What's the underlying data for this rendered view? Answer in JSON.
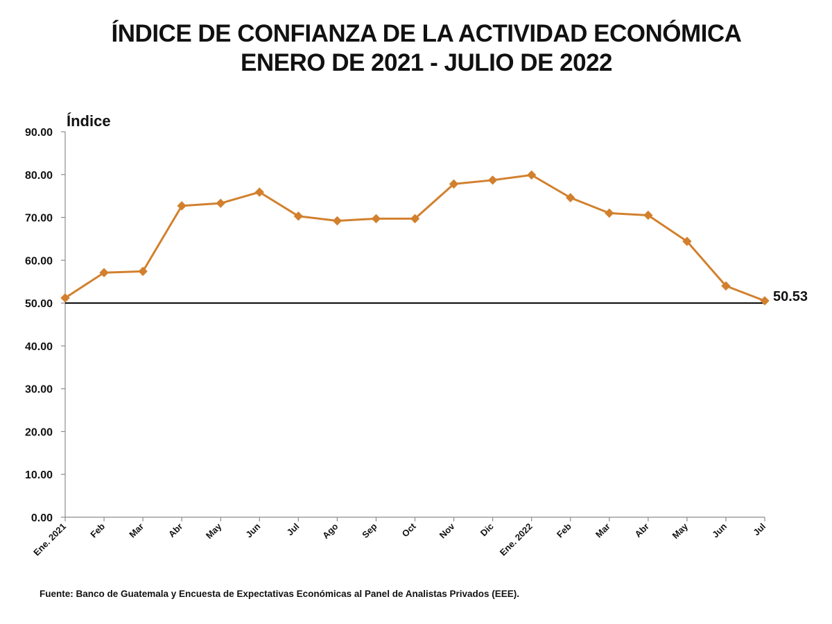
{
  "chart_data": {
    "type": "line",
    "title": [
      "ÍNDICE DE CONFIANZA DE LA ACTIVIDAD ECONÓMICA",
      "ENERO DE 2021 - JULIO DE 2022"
    ],
    "ylabel": "Índice",
    "xlabel": "",
    "ylim": [
      0,
      90
    ],
    "yticks": [
      "0.00",
      "10.00",
      "20.00",
      "30.00",
      "40.00",
      "50.00",
      "60.00",
      "70.00",
      "80.00",
      "90.00"
    ],
    "categories": [
      "Ene. 2021",
      "Feb",
      "Mar",
      "Abr",
      "May",
      "Jun",
      "Jul",
      "Ago",
      "Sep",
      "Oct",
      "Nov",
      "Dic",
      "Ene. 2022",
      "Feb",
      "Mar",
      "Abr",
      "May",
      "Jun",
      "Jul"
    ],
    "series": [
      {
        "values": [
          51.2,
          57.1,
          57.4,
          72.7,
          73.3,
          75.9,
          70.3,
          69.2,
          69.7,
          69.7,
          77.8,
          78.7,
          79.9,
          74.6,
          71.0,
          70.5,
          64.4,
          54.0,
          50.53
        ],
        "color": "#d2802e"
      }
    ],
    "reference_line": {
      "value": 50,
      "color": "#000000"
    },
    "annotation": {
      "text": "50.53"
    },
    "grid": false,
    "legend": "none",
    "marker": "diamond"
  },
  "source_note": "Fuente: Banco de Guatemala y Encuesta de Expectativas Económicas al Panel de Analistas Privados (EEE)."
}
